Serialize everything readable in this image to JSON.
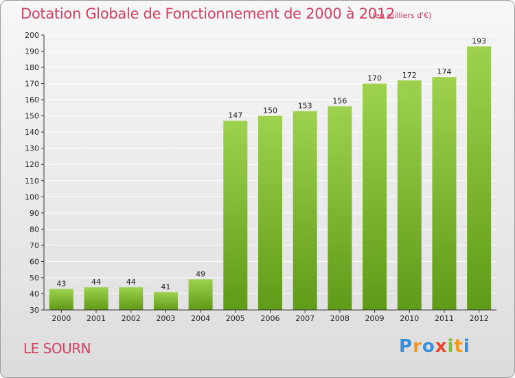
{
  "title": "Dotation Globale de Fonctionnement de 2000 à 2012",
  "subtitle": "(en milliers d'€)",
  "commune": "LE SOURN",
  "logo": {
    "text": "Proxiti",
    "letters": [
      "P",
      "r",
      "o",
      "x",
      "i",
      "t",
      "i"
    ],
    "colors": [
      "#3a8fd9",
      "#f39a1e",
      "#3a8fd9",
      "#e8442e",
      "#7fbf3a",
      "#f39a1e",
      "#3a8fd9"
    ]
  },
  "colors": {
    "title": "#d3405f",
    "bar_light": "#9ed24e",
    "bar_dark": "#5f9a18",
    "grid": "#ffffff",
    "axis_text": "#222222"
  },
  "chart_data": {
    "type": "bar",
    "title": "Dotation Globale de Fonctionnement de 2000 à 2012",
    "subtitle": "(en milliers d'€)",
    "categories": [
      "2000",
      "2001",
      "2002",
      "2003",
      "2004",
      "2005",
      "2006",
      "2007",
      "2008",
      "2009",
      "2010",
      "2011",
      "2012"
    ],
    "values": [
      43,
      44,
      44,
      41,
      49,
      147,
      150,
      153,
      156,
      170,
      172,
      174,
      193
    ],
    "ylim": [
      30,
      200
    ],
    "yticks": [
      30,
      40,
      50,
      60,
      70,
      80,
      90,
      100,
      110,
      120,
      130,
      140,
      150,
      160,
      170,
      180,
      190,
      200
    ],
    "grid": true,
    "data_labels": true,
    "xlabel": "",
    "ylabel": ""
  }
}
